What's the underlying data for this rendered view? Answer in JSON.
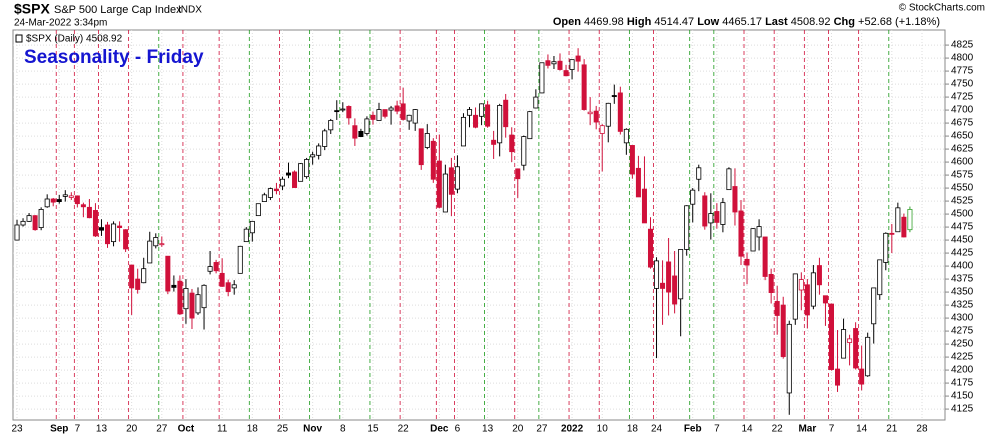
{
  "header": {
    "symbol": "$SPX",
    "name": "S&P 500 Large Cap Index",
    "exchange": "INDX",
    "timestamp": "24-Mar-2022 3:34pm",
    "open_label": "Open",
    "high_label": "High",
    "low_label": "Low",
    "last_label": "Last",
    "chg_label": "Chg",
    "chg": "+52.68 (+1.18%)",
    "copyright": "© StockCharts.com"
  },
  "chart_data": {
    "type": "candlestick",
    "title": "Seasonality - Friday",
    "legend": "$SPX (Daily) 4508.92",
    "categories": [
      "23",
      null,
      null,
      null,
      null,
      null,
      null,
      "Sep",
      null,
      null,
      "7",
      null,
      null,
      null,
      "13",
      null,
      null,
      null,
      null,
      "20",
      null,
      null,
      null,
      null,
      "27",
      null,
      null,
      null,
      "Oct",
      null,
      null,
      null,
      null,
      null,
      "11",
      null,
      null,
      null,
      null,
      "18",
      null,
      null,
      null,
      null,
      "25",
      null,
      null,
      null,
      null,
      "Nov",
      null,
      null,
      null,
      null,
      "8",
      null,
      null,
      null,
      null,
      "15",
      null,
      null,
      null,
      null,
      "22",
      null,
      null,
      null,
      null,
      null,
      "Dec",
      null,
      null,
      "6",
      null,
      null,
      null,
      null,
      "13",
      null,
      null,
      null,
      null,
      "20",
      null,
      null,
      null,
      "27",
      null,
      null,
      null,
      null,
      "2022",
      null,
      null,
      null,
      null,
      "10",
      null,
      null,
      null,
      null,
      "18",
      null,
      null,
      null,
      "24",
      null,
      null,
      null,
      null,
      null,
      "Feb",
      null,
      null,
      null,
      "7",
      null,
      null,
      null,
      null,
      "14",
      null,
      null,
      null,
      null,
      "22",
      null,
      null,
      null,
      null,
      "Mar",
      null,
      null,
      null,
      "7",
      null,
      null,
      null,
      null,
      "14",
      null,
      null,
      null,
      null,
      "21",
      null,
      null,
      null,
      null,
      "28"
    ],
    "open": [
      4450,
      4479,
      4486,
      4497,
      4474,
      4514,
      4529,
      4528,
      4534,
      4532,
      4535,
      4518,
      4513,
      4507,
      4474,
      4479,
      4447,
      4477,
      4470,
      4402,
      4375,
      4368,
      4406,
      4439,
      4443,
      4419,
      4363,
      4371,
      4318,
      4348,
      4310,
      4320,
      4390,
      4407,
      4386,
      4368,
      4358,
      4386,
      4447,
      4464,
      4497,
      4524,
      4532,
      4548,
      4554,
      4579,
      4581,
      4563,
      4572,
      4610,
      4613,
      4630,
      4662,
      4699,
      4702,
      4707,
      4670,
      4659,
      4655,
      4690,
      4680,
      4701,
      4700,
      4708,
      4712,
      4679,
      4675,
      4664,
      4628,
      4640,
      4602,
      4504,
      4589,
      4548,
      4631,
      4690,
      4690,
      4688,
      4710,
      4642,
      4637,
      4719,
      4652,
      4587,
      4594,
      4645,
      4704,
      4733,
      4795,
      4789,
      4794,
      4776,
      4778,
      4804,
      4787,
      4693,
      4698,
      4655,
      4669,
      4728,
      4733,
      4637,
      4632,
      4588,
      4548,
      4471,
      4357,
      4367,
      4408,
      4381,
      4337,
      4432,
      4519,
      4567,
      4535,
      4483,
      4505,
      4480,
      4547,
      4553,
      4506,
      4413,
      4429,
      4456,
      4456,
      4384,
      4332,
      4325,
      4156,
      4298,
      4354,
      4364,
      4323,
      4401,
      4343,
      4327,
      4202,
      4223,
      4253,
      4280,
      4202,
      4189,
      4289,
      4345,
      4407,
      4463,
      4466,
      4494,
      4469.98,
      null,
      null
    ],
    "high": [
      4489,
      4492,
      4502,
      4498,
      4513,
      4538,
      4531,
      4537,
      4546,
      4542,
      4535,
      4522,
      4529,
      4521,
      4490,
      4485,
      4486,
      4486,
      4471,
      4402,
      4395,
      4416,
      4466,
      4463,
      4457,
      4419,
      4382,
      4382,
      4375,
      4356,
      4359,
      4365,
      4429,
      4412,
      4415,
      4374,
      4373,
      4439,
      4475,
      4487,
      4520,
      4541,
      4551,
      4560,
      4572,
      4599,
      4584,
      4598,
      4608,
      4620,
      4636,
      4664,
      4683,
      4719,
      4715,
      4709,
      4684,
      4664,
      4688,
      4697,
      4714,
      4701,
      4708,
      4718,
      4743,
      4691,
      4702,
      4664,
      4673,
      4646,
      4653,
      4595,
      4608,
      4613,
      4694,
      4706,
      4705,
      4713,
      4718,
      4660,
      4712,
      4731,
      4667,
      4587,
      4651,
      4698,
      4740,
      4791,
      4807,
      4804,
      4809,
      4787,
      4797,
      4819,
      4798,
      4725,
      4708,
      4673,
      4714,
      4749,
      4745,
      4665,
      4632,
      4612,
      4611,
      4494,
      4417,
      4411,
      4454,
      4429,
      4432,
      4517,
      4550,
      4595,
      4542,
      4540,
      4521,
      4531,
      4590,
      4588,
      4527,
      4426,
      4473,
      4490,
      4456,
      4395,
      4362,
      4341,
      4295,
      4385,
      4388,
      4375,
      4402,
      4416,
      4343,
      4328,
      4277,
      4299,
      4268,
      4292,
      4247,
      4272,
      4358,
      4412,
      4465,
      4481,
      4522,
      4501,
      4514.47,
      null,
      null
    ],
    "low": [
      4450,
      4476,
      4485,
      4468,
      4469,
      4512,
      4515,
      4520,
      4524,
      4527,
      4513,
      4494,
      4492,
      4456,
      4458,
      4435,
      4438,
      4447,
      4427,
      4306,
      4347,
      4367,
      4406,
      4434,
      4437,
      4346,
      4351,
      4306,
      4289,
      4279,
      4306,
      4278,
      4384,
      4386,
      4360,
      4342,
      4345,
      4386,
      4447,
      4447,
      4497,
      4524,
      4527,
      4538,
      4546,
      4569,
      4551,
      4563,
      4568,
      4595,
      4605,
      4623,
      4654,
      4681,
      4696,
      4672,
      4631,
      4648,
      4651,
      4672,
      4680,
      4684,
      4672,
      4692,
      4680,
      4662,
      4660,
      4585,
      4625,
      4560,
      4511,
      4504,
      4496,
      4540,
      4631,
      4667,
      4665,
      4671,
      4666,
      4606,
      4611,
      4647,
      4600,
      4531,
      4584,
      4645,
      4703,
      4733,
      4780,
      4779,
      4776,
      4765,
      4759,
      4774,
      4699,
      4671,
      4663,
      4582,
      4638,
      4712,
      4653,
      4614,
      4568,
      4533,
      4483,
      4395,
      4223,
      4287,
      4305,
      4309,
      4265,
      4420,
      4484,
      4544,
      4470,
      4451,
      4472,
      4465,
      4547,
      4478,
      4402,
      4365,
      4429,
      4430,
      4373,
      4328,
      4268,
      4222,
      4114,
      4287,
      4315,
      4280,
      4317,
      4345,
      4285,
      4199,
      4158,
      4223,
      4209,
      4201,
      4161,
      4187,
      4251,
      4335,
      4392,
      4425,
      4466,
      4455,
      4465.17,
      null,
      null
    ],
    "close": [
      4479,
      4486,
      4497,
      4470,
      4509,
      4529,
      4523,
      4524,
      4537,
      4535,
      4520,
      4514,
      4493,
      4458,
      4469,
      4443,
      4481,
      4474,
      4433,
      4358,
      4355,
      4395,
      4448,
      4455,
      4443,
      4352,
      4359,
      4308,
      4357,
      4300,
      4345,
      4363,
      4399,
      4391,
      4361,
      4351,
      4364,
      4438,
      4471,
      4486,
      4520,
      4537,
      4549,
      4545,
      4567,
      4575,
      4551,
      4597,
      4605,
      4614,
      4631,
      4660,
      4680,
      4697,
      4702,
      4685,
      4646,
      4649,
      4683,
      4682,
      4701,
      4688,
      4704,
      4698,
      4682,
      4690,
      4701,
      4595,
      4655,
      4567,
      4513,
      4577,
      4538,
      4591,
      4686,
      4701,
      4667,
      4712,
      4669,
      4634,
      4709,
      4668,
      4620,
      4568,
      4649,
      4697,
      4725,
      4791,
      4786,
      4793,
      4778,
      4766,
      4797,
      4794,
      4701,
      4696,
      4677,
      4670,
      4713,
      4726,
      4659,
      4663,
      4577,
      4533,
      4483,
      4398,
      4410,
      4357,
      4350,
      4327,
      4432,
      4516,
      4546,
      4589,
      4477,
      4501,
      4484,
      4522,
      4587,
      4504,
      4419,
      4402,
      4472,
      4476,
      4380,
      4349,
      4305,
      4226,
      4288,
      4385,
      4374,
      4306,
      4387,
      4364,
      4329,
      4201,
      4171,
      4278,
      4260,
      4204,
      4173,
      4263,
      4358,
      4412,
      4463,
      4461,
      4512,
      4456,
      4508.92,
      null,
      null
    ],
    "ylim": [
      4104,
      4854
    ],
    "yticks": [
      4125,
      4150,
      4175,
      4200,
      4225,
      4250,
      4275,
      4300,
      4325,
      4350,
      4375,
      4400,
      4425,
      4450,
      4475,
      4500,
      4525,
      4550,
      4575,
      4600,
      4625,
      4650,
      4675,
      4700,
      4725,
      4750,
      4775,
      4800,
      4825
    ],
    "grid": true,
    "up_color": "#000000",
    "down_color": "#d0103a",
    "last_color": "#33a02c",
    "line_up_color": "#1a9a1a",
    "line_down_color": "#d0103a",
    "title_color": "#1515d0"
  }
}
